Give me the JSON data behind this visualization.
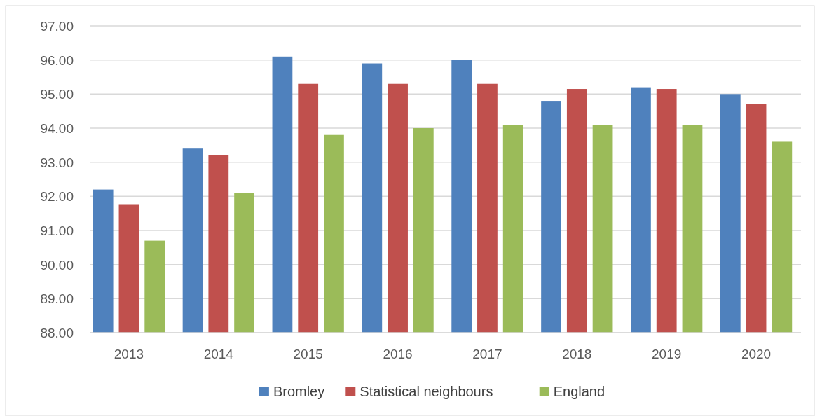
{
  "chart_data": {
    "type": "bar",
    "categories": [
      "2013",
      "2014",
      "2015",
      "2016",
      "2017",
      "2018",
      "2019",
      "2020"
    ],
    "series": [
      {
        "name": "Bromley",
        "color": "#4f81bd",
        "values": [
          92.2,
          93.4,
          96.1,
          95.9,
          96.0,
          94.8,
          95.2,
          95.0
        ]
      },
      {
        "name": "Statistical neighbours",
        "color": "#c0504d",
        "values": [
          91.75,
          93.2,
          95.3,
          95.3,
          95.3,
          95.15,
          95.15,
          94.7
        ]
      },
      {
        "name": "England",
        "color": "#9bbb59",
        "values": [
          90.7,
          92.1,
          93.8,
          94.0,
          94.1,
          94.1,
          94.1,
          93.6
        ]
      }
    ],
    "ylim": [
      88,
      97
    ],
    "yticks": [
      {
        "value": 88,
        "label": "88.00"
      },
      {
        "value": 89,
        "label": "89.00"
      },
      {
        "value": 90,
        "label": "90.00"
      },
      {
        "value": 91,
        "label": "91.00"
      },
      {
        "value": 92,
        "label": "92.00"
      },
      {
        "value": 93,
        "label": "93.00"
      },
      {
        "value": 94,
        "label": "94.00"
      },
      {
        "value": 95,
        "label": "95.00"
      },
      {
        "value": 96,
        "label": "96.00"
      },
      {
        "value": 97,
        "label": "97.00"
      }
    ],
    "grid": "y",
    "legend": "bottom"
  }
}
